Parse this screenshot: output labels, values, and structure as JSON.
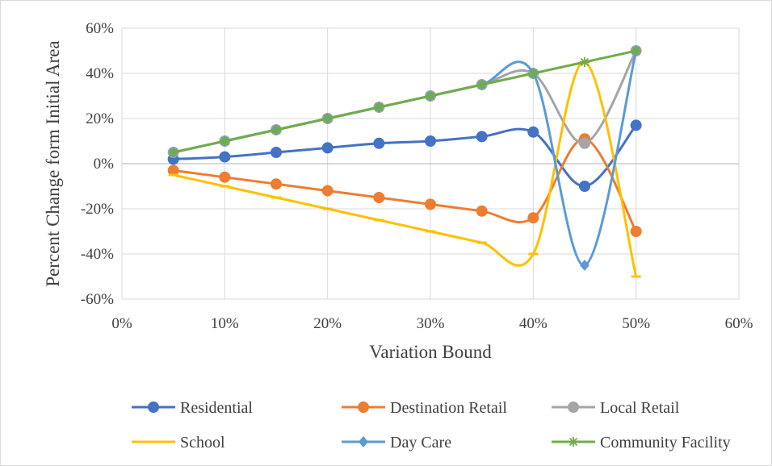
{
  "chart_data": {
    "type": "line",
    "xlabel": "Variation Bound",
    "ylabel": "Percent Change form Initial Area",
    "xlim": [
      0,
      60
    ],
    "ylim": [
      -60,
      60
    ],
    "x_ticks": [
      "0%",
      "10%",
      "20%",
      "30%",
      "40%",
      "50%",
      "60%"
    ],
    "y_ticks": [
      "60%",
      "40%",
      "20%",
      "0%",
      "-20%",
      "-40%",
      "-60%"
    ],
    "x_unit": "%",
    "y_unit": "%",
    "grid": true,
    "smoothed": true,
    "legend_position": "bottom",
    "x": [
      5,
      10,
      15,
      20,
      25,
      30,
      35,
      40,
      45,
      50
    ],
    "series": [
      {
        "name": "Residential",
        "color": "#4472C4",
        "marker": "circle",
        "values": [
          2,
          3,
          5,
          7,
          9,
          10,
          12,
          14,
          -10,
          17
        ]
      },
      {
        "name": "Destination Retail",
        "color": "#ED7D31",
        "marker": "circle",
        "values": [
          -3,
          -6,
          -9,
          -12,
          -15,
          -18,
          -21,
          -24,
          11,
          -30
        ]
      },
      {
        "name": "Local Retail",
        "color": "#A5A5A5",
        "marker": "circle",
        "values": [
          5,
          10,
          15,
          20,
          25,
          30,
          35,
          40,
          9,
          50
        ]
      },
      {
        "name": "School",
        "color": "#FFC000",
        "marker": "dash",
        "values": [
          -5,
          -10,
          -15,
          -20,
          -25,
          -30,
          -35,
          -40,
          45,
          -50
        ]
      },
      {
        "name": "Day Care",
        "color": "#5B9BD5",
        "marker": "diamond",
        "values": [
          5,
          10,
          15,
          20,
          25,
          30,
          35,
          40,
          -45,
          50
        ]
      },
      {
        "name": "Community Facility",
        "color": "#70AD47",
        "marker": "star",
        "values": [
          5,
          10,
          15,
          20,
          25,
          30,
          35,
          40,
          45,
          50
        ]
      }
    ]
  }
}
